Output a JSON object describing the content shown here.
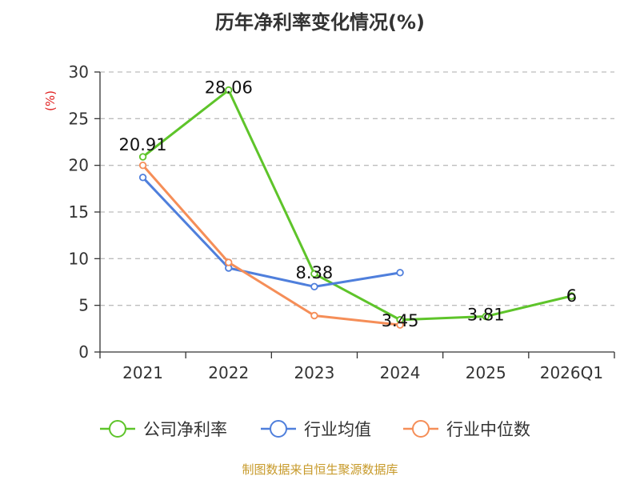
{
  "chart_data": {
    "type": "line",
    "title": "历年净利率变化情况(%)",
    "ylabel": "(%)",
    "xlabel": "",
    "categories": [
      "2021",
      "2022",
      "2023",
      "2024",
      "2025",
      "2026Q1"
    ],
    "ylim": [
      0,
      30
    ],
    "yticks": [
      0,
      5,
      10,
      15,
      20,
      25,
      30
    ],
    "grid": true,
    "legend_position": "bottom",
    "series": [
      {
        "name": "公司净利率",
        "color": "#5ec42a",
        "values": [
          20.91,
          28.06,
          8.38,
          3.45,
          3.81,
          6
        ],
        "labels": [
          "20.91",
          "28.06",
          "8.38",
          "3.45",
          "3.81",
          "6"
        ]
      },
      {
        "name": "行业均值",
        "color": "#4f7fdc",
        "values": [
          18.7,
          9.0,
          7.0,
          8.5,
          null,
          null
        ]
      },
      {
        "name": "行业中位数",
        "color": "#f58e58",
        "values": [
          20.0,
          9.6,
          3.9,
          2.9,
          null,
          null
        ]
      }
    ]
  },
  "source": "制图数据来自恒生聚源数据库"
}
